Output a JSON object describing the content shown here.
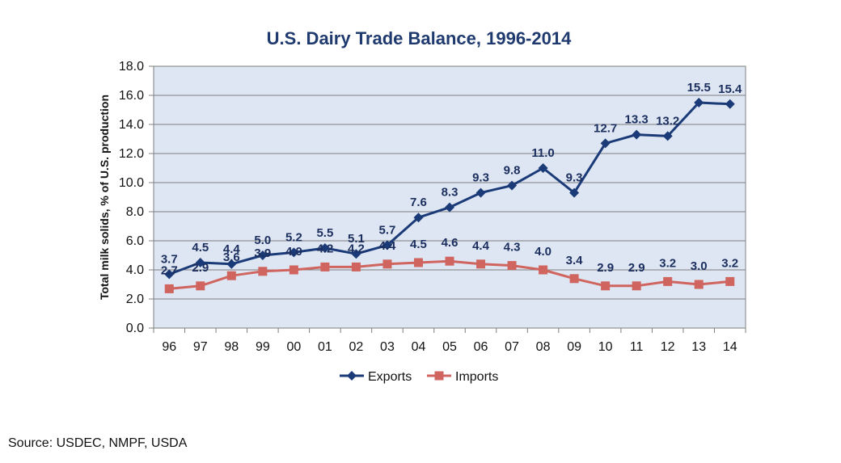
{
  "chart_data": {
    "type": "line",
    "title": "U.S. Dairy Trade Balance, 1996-2014",
    "xlabel": "",
    "ylabel": "Total milk solids, % of U.S. production",
    "ylim": [
      0,
      18
    ],
    "yticks": [
      "0.0",
      "2.0",
      "4.0",
      "6.0",
      "8.0",
      "10.0",
      "12.0",
      "14.0",
      "16.0",
      "18.0"
    ],
    "categories": [
      "96",
      "97",
      "98",
      "99",
      "00",
      "01",
      "02",
      "03",
      "04",
      "05",
      "06",
      "07",
      "08",
      "09",
      "10",
      "11",
      "12",
      "13",
      "14"
    ],
    "grid": true,
    "legend_position": "bottom",
    "series": [
      {
        "name": "Exports",
        "color": "#1b3a78",
        "marker": "diamond",
        "values": [
          3.7,
          4.5,
          4.4,
          5.0,
          5.2,
          5.5,
          5.1,
          5.7,
          7.6,
          8.3,
          9.3,
          9.8,
          11.0,
          9.3,
          12.7,
          13.3,
          13.2,
          15.5,
          15.4
        ],
        "labels": [
          "3.7",
          "4.5",
          "4.4",
          "5.0",
          "5.2",
          "5.5",
          "5.1",
          "5.7",
          "7.6",
          "8.3",
          "9.3",
          "9.8",
          "11.0",
          "9.3",
          "12.7",
          "13.3",
          "13.2",
          "15.5",
          "15.4"
        ]
      },
      {
        "name": "Imports",
        "color": "#d0645f",
        "marker": "square",
        "values": [
          2.7,
          2.9,
          3.6,
          3.9,
          4.0,
          4.2,
          4.2,
          4.4,
          4.5,
          4.6,
          4.4,
          4.3,
          4.0,
          3.4,
          2.9,
          2.9,
          3.2,
          3.0,
          3.2
        ],
        "labels": [
          "2.7",
          "2.9",
          "3.6",
          "3.9",
          "4.0",
          "4.2",
          "4.2",
          "4.4",
          "4.5",
          "4.6",
          "4.4",
          "4.3",
          "4.0",
          "3.4",
          "2.9",
          "2.9",
          "3.2",
          "3.0",
          "3.2"
        ]
      }
    ]
  },
  "source": "Source: USDEC, NMPF, USDA"
}
